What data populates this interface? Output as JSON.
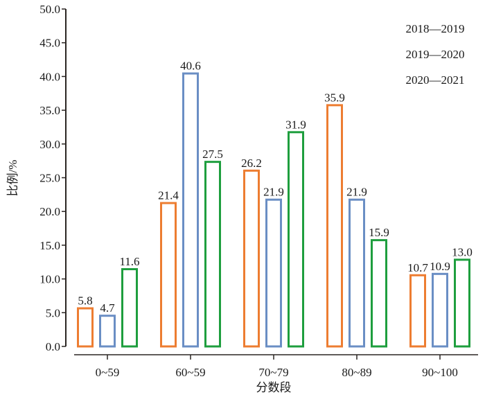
{
  "chart_data": {
    "type": "bar",
    "title": "",
    "xlabel": "分数段",
    "ylabel": "比例/%",
    "ylim": [
      0,
      50
    ],
    "yticks": [
      "0.0",
      "5.0",
      "10.0",
      "15.0",
      "20.0",
      "25.0",
      "30.0",
      "35.0",
      "40.0",
      "45.0",
      "50.0"
    ],
    "categories": [
      "0~59",
      "60~59",
      "70~79",
      "80~89",
      "90~100"
    ],
    "series": [
      {
        "name": "2018—2019",
        "color": "#ED7D31",
        "values": [
          5.8,
          21.4,
          26.2,
          35.9,
          10.7
        ],
        "labels": [
          "5.8",
          "21.4",
          "26.2",
          "35.9",
          "10.7"
        ]
      },
      {
        "name": "2019—2020",
        "color": "#6A8EC4",
        "values": [
          4.7,
          40.6,
          21.9,
          21.9,
          10.9
        ],
        "labels": [
          "4.7",
          "40.6",
          "21.9",
          "21.9",
          "10.9"
        ]
      },
      {
        "name": "2020—2021",
        "color": "#1E9E3E",
        "values": [
          11.6,
          27.5,
          31.9,
          15.9,
          13.0
        ],
        "labels": [
          "11.6",
          "27.5",
          "31.9",
          "15.9",
          "13.0"
        ]
      }
    ],
    "bar_style": "outline",
    "legend": {
      "placement": "top-right",
      "entries": [
        "2018—2019",
        "2019—2020",
        "2020—2021"
      ]
    },
    "grid": false
  }
}
